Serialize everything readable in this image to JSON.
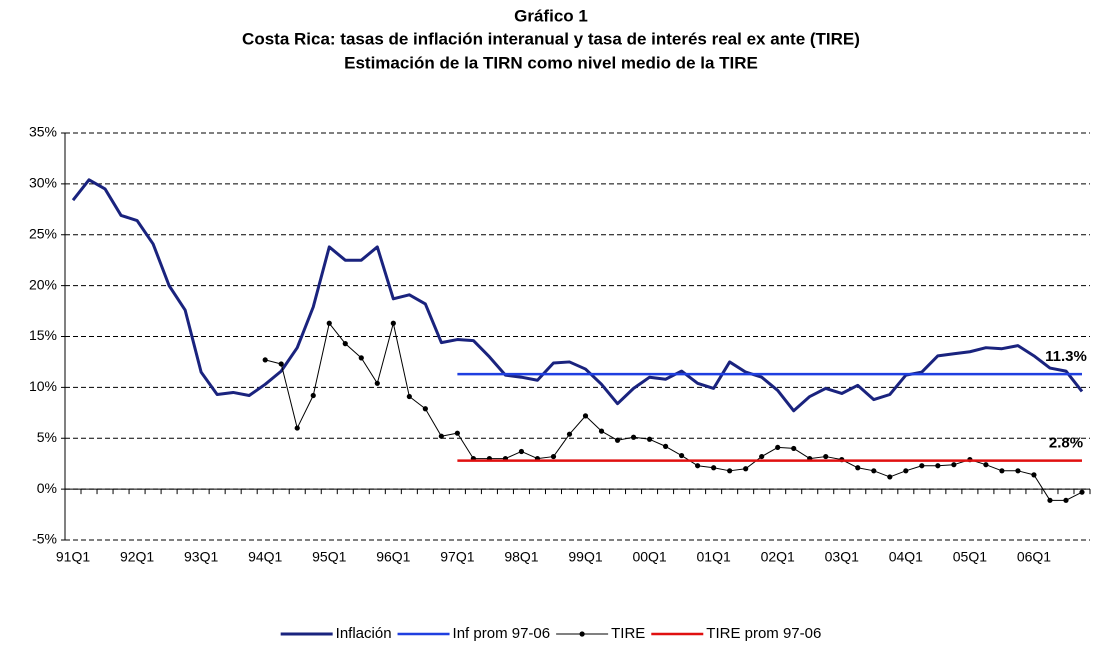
{
  "chart_data": {
    "type": "line",
    "title": [
      "Gráfico 1",
      "Costa Rica: tasas de inflación interanual y tasa de interés real ex ante (TIRE)",
      "Estimación de la TIRN como nivel medio de la TIRE"
    ],
    "categories": [
      "91Q1",
      null,
      null,
      null,
      "92Q1",
      null,
      null,
      null,
      "93Q1",
      null,
      null,
      null,
      "94Q1",
      null,
      null,
      null,
      "95Q1",
      null,
      null,
      null,
      "96Q1",
      null,
      null,
      null,
      "97Q1",
      null,
      null,
      null,
      "98Q1",
      null,
      null,
      null,
      "99Q1",
      null,
      null,
      null,
      "00Q1",
      null,
      null,
      null,
      "01Q1",
      null,
      null,
      null,
      "02Q1",
      null,
      null,
      null,
      "03Q1",
      null,
      null,
      null,
      "04Q1",
      null,
      null,
      null,
      "05Q1",
      null,
      null,
      null,
      "06Q1",
      null,
      null,
      null
    ],
    "ylim": [
      -5,
      35
    ],
    "yticks": [
      {
        "value": -5,
        "label": "-5%"
      },
      {
        "value": 0,
        "label": "0%"
      },
      {
        "value": 5,
        "label": "5%"
      },
      {
        "value": 10,
        "label": "10%"
      },
      {
        "value": 15,
        "label": "15%"
      },
      {
        "value": 20,
        "label": "20%"
      },
      {
        "value": 25,
        "label": "25%"
      },
      {
        "value": 30,
        "label": "30%"
      },
      {
        "value": 35,
        "label": "35%"
      }
    ],
    "grid": true,
    "legend": "bottom",
    "series": [
      {
        "name": "Inflación",
        "color": "#1a237e",
        "width": 3,
        "markers": false,
        "values": [
          28.4,
          30.4,
          29.5,
          26.9,
          26.4,
          24.1,
          20.0,
          17.6,
          11.5,
          9.3,
          9.5,
          9.2,
          10.3,
          11.6,
          13.9,
          17.9,
          23.8,
          22.5,
          22.5,
          23.8,
          18.7,
          19.1,
          18.2,
          14.4,
          14.7,
          14.6,
          13.0,
          11.2,
          11.0,
          10.7,
          12.4,
          12.5,
          11.8,
          10.3,
          8.4,
          9.9,
          11.0,
          10.8,
          11.6,
          10.4,
          9.9,
          12.5,
          11.5,
          11.0,
          9.7,
          7.7,
          9.1,
          9.9,
          9.4,
          10.2,
          8.8,
          9.3,
          11.2,
          11.5,
          13.1,
          13.3,
          13.5,
          13.9,
          13.8,
          14.1,
          13.1,
          11.9,
          11.6,
          9.6
        ]
      },
      {
        "name": "Inf prom 97-06",
        "color": "#1f3fe0",
        "width": 2.5,
        "markers": false,
        "values": [
          null,
          null,
          null,
          null,
          null,
          null,
          null,
          null,
          null,
          null,
          null,
          null,
          null,
          null,
          null,
          null,
          null,
          null,
          null,
          null,
          null,
          null,
          null,
          null,
          11.3,
          11.3,
          11.3,
          11.3,
          11.3,
          11.3,
          11.3,
          11.3,
          11.3,
          11.3,
          11.3,
          11.3,
          11.3,
          11.3,
          11.3,
          11.3,
          11.3,
          11.3,
          11.3,
          11.3,
          11.3,
          11.3,
          11.3,
          11.3,
          11.3,
          11.3,
          11.3,
          11.3,
          11.3,
          11.3,
          11.3,
          11.3,
          11.3,
          11.3,
          11.3,
          11.3,
          11.3,
          11.3,
          11.3,
          11.3
        ],
        "value_labels": [
          null,
          null,
          null,
          null,
          null,
          null,
          null,
          null,
          null,
          null,
          null,
          null,
          null,
          null,
          null,
          null,
          null,
          null,
          null,
          null,
          null,
          null,
          null,
          null,
          null,
          null,
          null,
          null,
          null,
          null,
          null,
          null,
          null,
          null,
          null,
          null,
          null,
          null,
          null,
          null,
          null,
          null,
          null,
          null,
          null,
          null,
          null,
          null,
          null,
          null,
          null,
          null,
          null,
          null,
          null,
          null,
          null,
          null,
          null,
          null,
          null,
          null,
          "11.3%",
          null
        ]
      },
      {
        "name": "TIRE",
        "color": "#000000",
        "width": 1,
        "markers": true,
        "values": [
          null,
          null,
          null,
          null,
          null,
          null,
          null,
          null,
          null,
          null,
          null,
          null,
          12.7,
          12.3,
          6.0,
          9.2,
          16.3,
          14.3,
          12.9,
          10.4,
          16.3,
          9.1,
          7.9,
          5.2,
          5.5,
          3.0,
          3.0,
          3.0,
          3.7,
          3.0,
          3.2,
          5.4,
          7.2,
          5.7,
          4.8,
          5.1,
          4.9,
          4.2,
          3.3,
          2.3,
          2.1,
          1.8,
          2.0,
          3.2,
          4.1,
          4.0,
          3.0,
          3.2,
          2.9,
          2.1,
          1.8,
          1.2,
          1.8,
          2.3,
          2.3,
          2.4,
          2.9,
          2.4,
          1.8,
          1.8,
          1.4,
          -1.1,
          -1.1,
          -0.3
        ]
      },
      {
        "name": "TIRE prom 97-06",
        "color": "#e01010",
        "width": 2.5,
        "markers": false,
        "values": [
          null,
          null,
          null,
          null,
          null,
          null,
          null,
          null,
          null,
          null,
          null,
          null,
          null,
          null,
          null,
          null,
          null,
          null,
          null,
          null,
          null,
          null,
          null,
          null,
          2.8,
          2.8,
          2.8,
          2.8,
          2.8,
          2.8,
          2.8,
          2.8,
          2.8,
          2.8,
          2.8,
          2.8,
          2.8,
          2.8,
          2.8,
          2.8,
          2.8,
          2.8,
          2.8,
          2.8,
          2.8,
          2.8,
          2.8,
          2.8,
          2.8,
          2.8,
          2.8,
          2.8,
          2.8,
          2.8,
          2.8,
          2.8,
          2.8,
          2.8,
          2.8,
          2.8,
          2.8,
          2.8,
          2.8,
          2.8
        ],
        "value_labels": [
          null,
          null,
          null,
          null,
          null,
          null,
          null,
          null,
          null,
          null,
          null,
          null,
          null,
          null,
          null,
          null,
          null,
          null,
          null,
          null,
          null,
          null,
          null,
          null,
          null,
          null,
          null,
          null,
          null,
          null,
          null,
          null,
          null,
          null,
          null,
          null,
          null,
          null,
          null,
          null,
          null,
          null,
          null,
          null,
          null,
          null,
          null,
          null,
          null,
          null,
          null,
          null,
          null,
          null,
          null,
          null,
          null,
          null,
          null,
          null,
          null,
          null,
          "2.8%",
          null
        ]
      }
    ]
  }
}
